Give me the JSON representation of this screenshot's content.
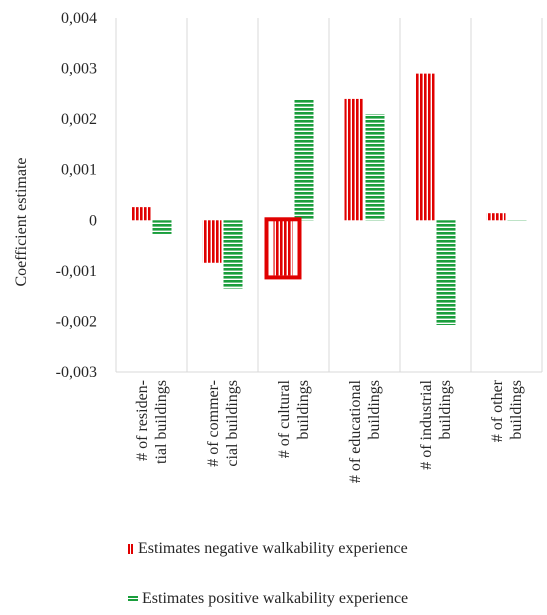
{
  "chart_data": {
    "type": "bar",
    "ylabel": "Coefficient estimate",
    "ylim": [
      -0.003,
      0.004
    ],
    "ytick_values": [
      0.004,
      0.003,
      0.002,
      0.001,
      0,
      -0.001,
      -0.002,
      -0.003
    ],
    "ytick_labels": [
      "0,004",
      "0,003",
      "0,002",
      "0,001",
      "0",
      "-0,001",
      "-0,002",
      "-0,003"
    ],
    "categories": [
      [
        "# of residen-",
        "tial buildings"
      ],
      [
        "# of commer-",
        "cial buildings"
      ],
      [
        "# of cultural",
        "buildings"
      ],
      [
        "# of educational",
        "buildings"
      ],
      [
        "# of industrial",
        "buildings"
      ],
      [
        "# of other",
        "buildings"
      ]
    ],
    "series": [
      {
        "name": "Estimates negative walkability experience",
        "color": "#e00000",
        "pattern": "vertical-stripes",
        "values": [
          0.00026,
          -0.00084,
          -0.00109,
          0.0024,
          0.0029,
          0.00014
        ]
      },
      {
        "name": "Estimates positive walkability experience",
        "color": "#1a9e3c",
        "pattern": "horizontal-stripes",
        "values": [
          -0.00027,
          -0.00135,
          0.00238,
          0.0021,
          -0.00207,
          2e-05
        ]
      }
    ],
    "highlight": {
      "category_index": 2,
      "series_index": 0,
      "color": "#e00000"
    },
    "grid": "vertical-category-separators",
    "legend_position": "bottom"
  }
}
